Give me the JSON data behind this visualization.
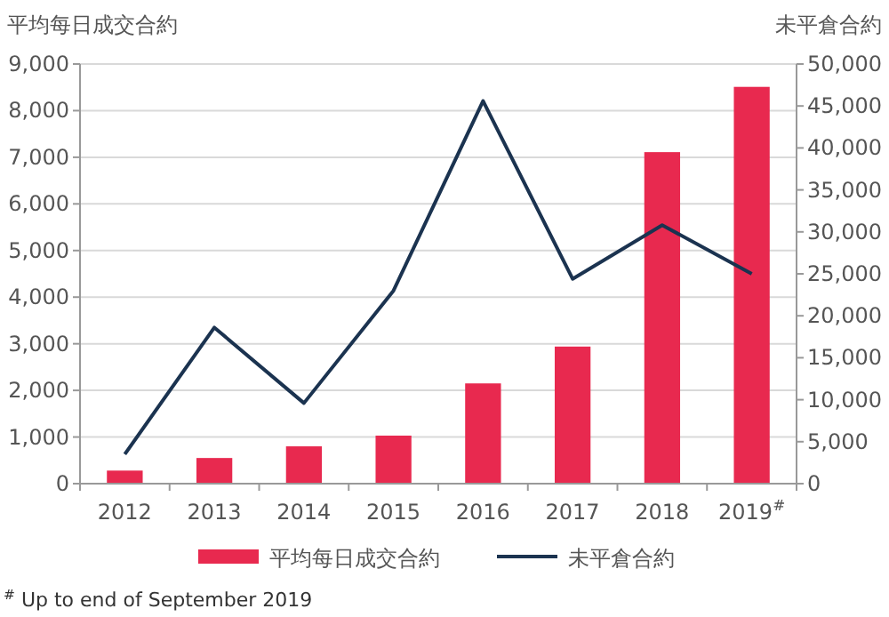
{
  "chart_data": {
    "type": "bar",
    "ylabel": "平均每日成交合約",
    "y2label": "未平倉合約",
    "categories": [
      "2012",
      "2013",
      "2014",
      "2015",
      "2016",
      "2017",
      "2018",
      "2019$^{#}$"
    ],
    "series": [
      {
        "name": "平均每日成交合約",
        "color": "#e8294f",
        "values": [
          280,
          550,
          800,
          1030,
          2150,
          2940,
          7110,
          8510
        ]
      },
      {
        "name": "未平倉合約",
        "type": "line",
        "axis": "y2",
        "color": "#1b3350",
        "values": [
          3500,
          18600,
          9600,
          23000,
          45600,
          24400,
          30800,
          25000
        ]
      }
    ],
    "ylim": [
      0,
      9000
    ],
    "yticks": [
      {
        "value": 0,
        "label": "0"
      },
      {
        "value": 1000,
        "label": "1,000"
      },
      {
        "value": 2000,
        "label": "2,000"
      },
      {
        "value": 3000,
        "label": "3,000"
      },
      {
        "value": 4000,
        "label": "4,000"
      },
      {
        "value": 5000,
        "label": "5,000"
      },
      {
        "value": 6000,
        "label": "6,000"
      },
      {
        "value": 7000,
        "label": "7,000"
      },
      {
        "value": 8000,
        "label": "8,000"
      },
      {
        "value": 9000,
        "label": "9,000"
      }
    ],
    "y2lim": [
      0,
      50000
    ],
    "y2ticks": [
      {
        "value": 0,
        "label": "0"
      },
      {
        "value": 5000,
        "label": "5,000"
      },
      {
        "value": 10000,
        "label": "10,000"
      },
      {
        "value": 15000,
        "label": "15,000"
      },
      {
        "value": 20000,
        "label": "20,000"
      },
      {
        "value": 25000,
        "label": "25,000"
      },
      {
        "value": 30000,
        "label": "30,000"
      },
      {
        "value": 35000,
        "label": "35,000"
      },
      {
        "value": 40000,
        "label": "40,000"
      },
      {
        "value": 45000,
        "label": "45,000"
      },
      {
        "value": 50000,
        "label": "50,000"
      }
    ],
    "grid": "y",
    "legend": "bottom",
    "annotations": [
      "$^{#}$ Up to end of September 2019"
    ]
  }
}
